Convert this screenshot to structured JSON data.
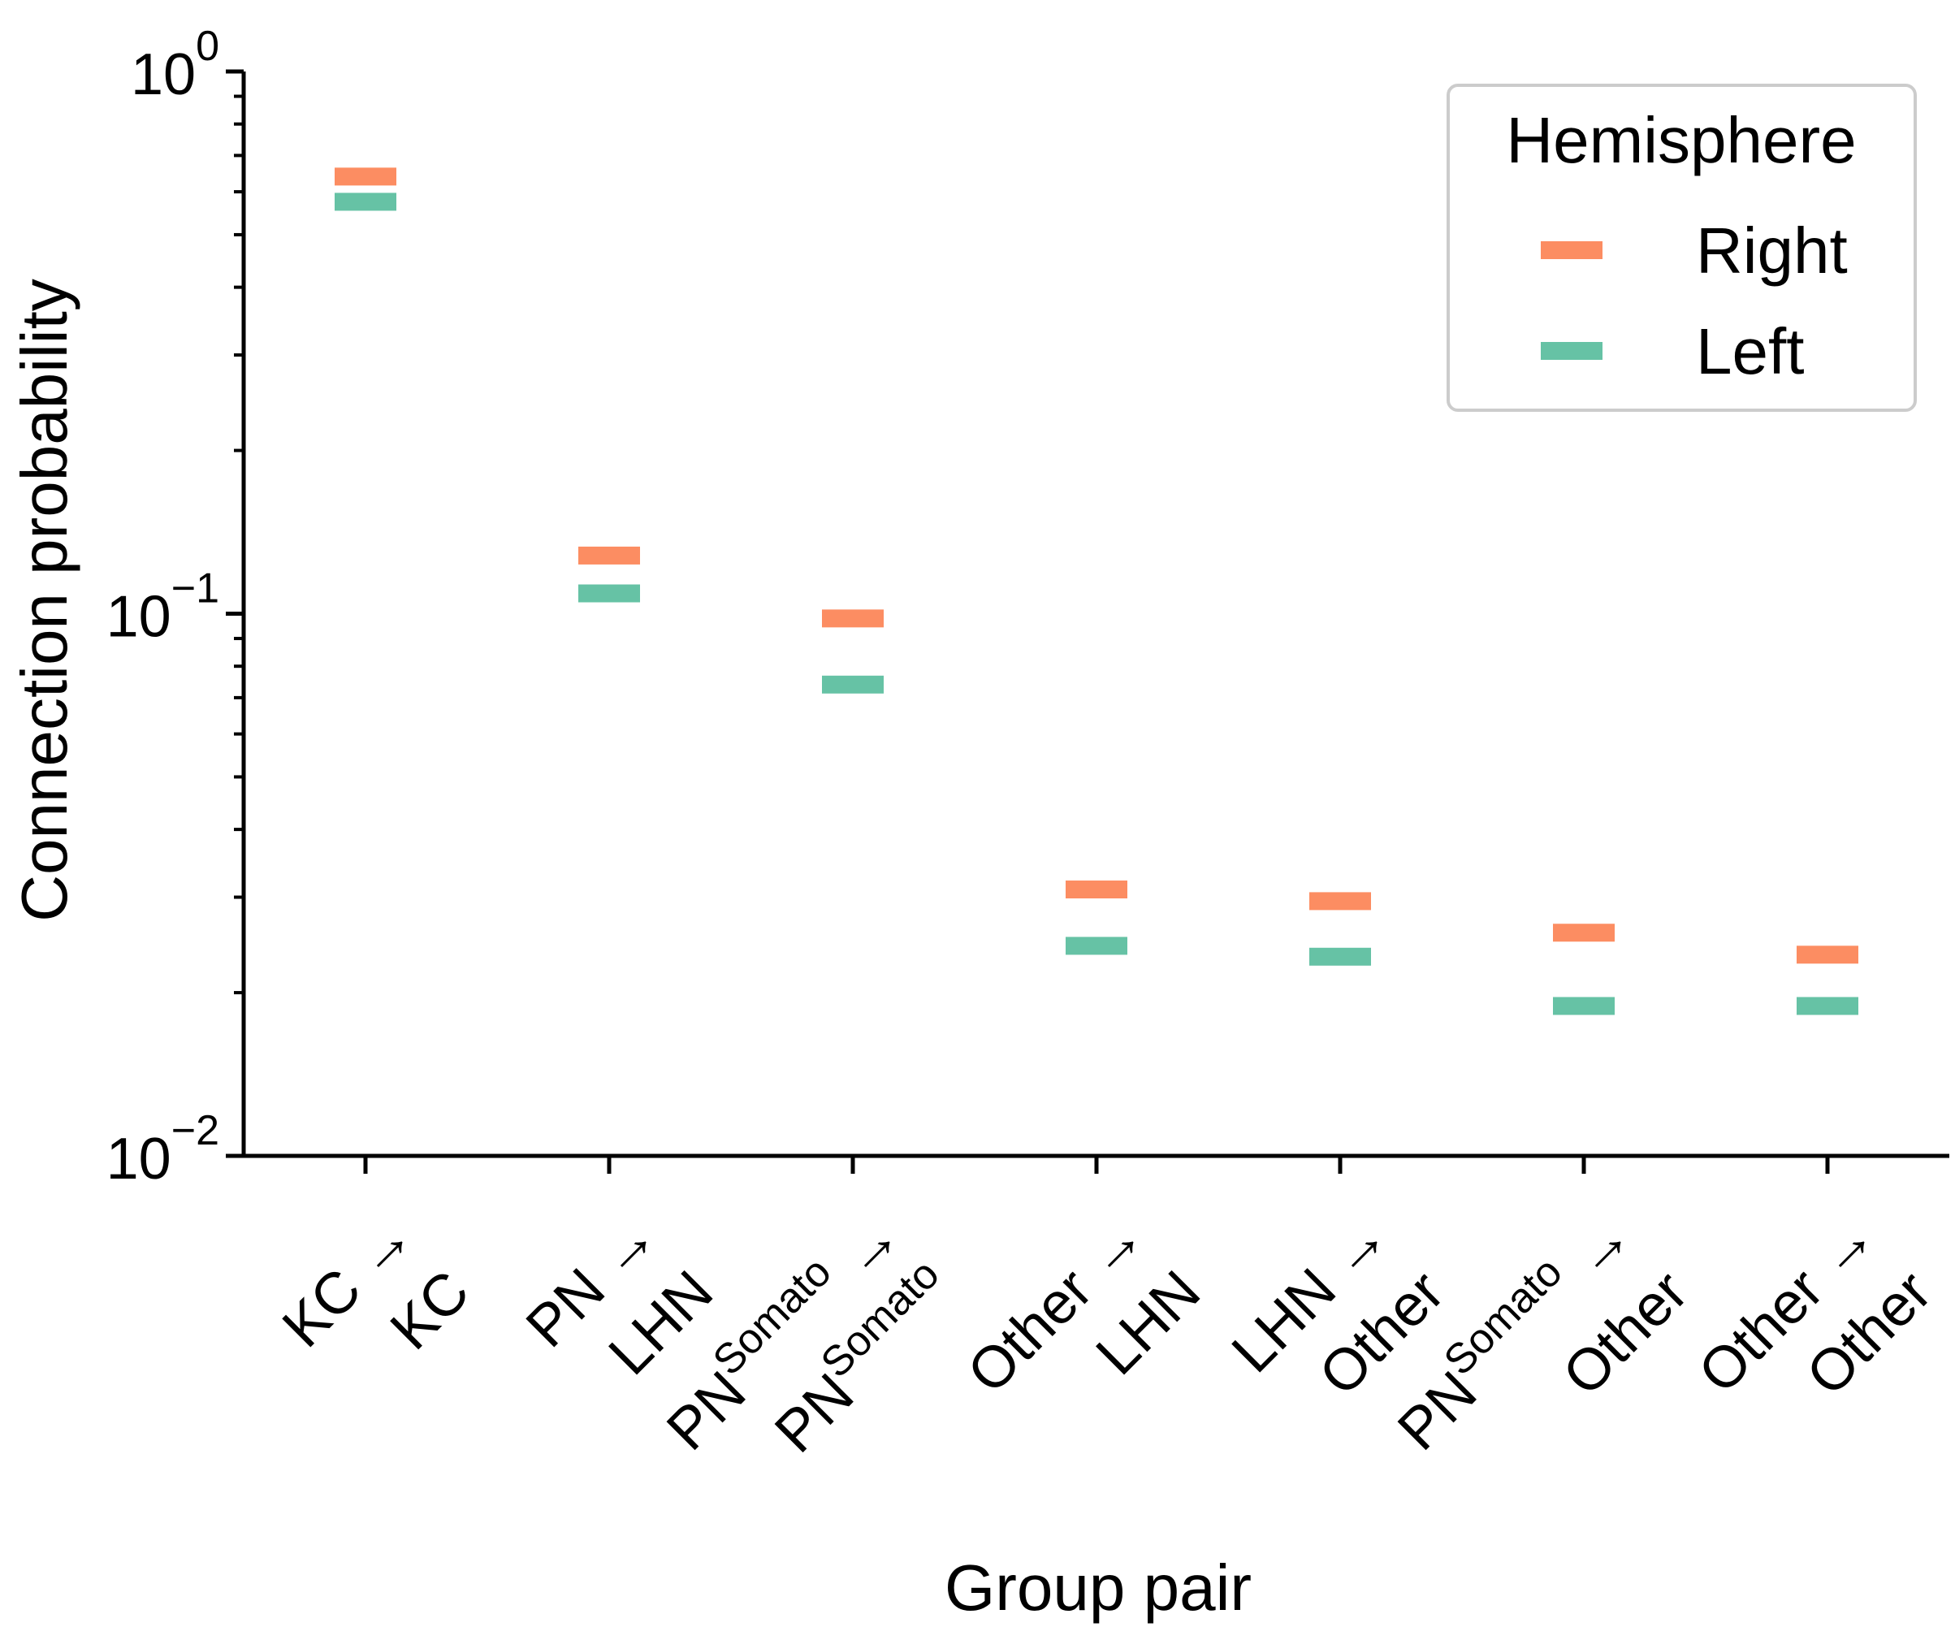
{
  "chart_data": {
    "type": "scatter",
    "marker": "horizontal-dash",
    "xlabel": "Group pair",
    "ylabel": "Connection probability",
    "yscale": "log",
    "ylim": [
      0.01,
      1
    ],
    "yticks": [
      {
        "value": 1,
        "base": "10",
        "exp": "0"
      },
      {
        "value": 0.1,
        "base": "10",
        "exp": "−1"
      },
      {
        "value": 0.01,
        "base": "10",
        "exp": "−2"
      }
    ],
    "grid": false,
    "categories": [
      {
        "line1": [
          {
            "t": "KC →"
          }
        ],
        "line2": [
          {
            "t": "KC"
          }
        ]
      },
      {
        "line1": [
          {
            "t": "PN →"
          }
        ],
        "line2": [
          {
            "t": "LHN"
          }
        ]
      },
      {
        "line1": [
          {
            "t": "PN"
          },
          {
            "t": "Somato",
            "sup": true
          },
          {
            "t": " →"
          }
        ],
        "line2": [
          {
            "t": "PN"
          },
          {
            "t": "Somato",
            "sup": true
          }
        ]
      },
      {
        "line1": [
          {
            "t": "Other →"
          }
        ],
        "line2": [
          {
            "t": "LHN"
          }
        ]
      },
      {
        "line1": [
          {
            "t": "LHN →"
          }
        ],
        "line2": [
          {
            "t": "Other"
          }
        ]
      },
      {
        "line1": [
          {
            "t": "PN"
          },
          {
            "t": "Somato",
            "sup": true
          },
          {
            "t": " →"
          }
        ],
        "line2": [
          {
            "t": "Other"
          }
        ]
      },
      {
        "line1": [
          {
            "t": "Other →"
          }
        ],
        "line2": [
          {
            "t": "Other"
          }
        ]
      }
    ],
    "series": [
      {
        "name": "Right",
        "color": "#fc8d62",
        "values": [
          0.64,
          0.128,
          0.098,
          0.031,
          0.0295,
          0.0258,
          0.0235
        ]
      },
      {
        "name": "Left",
        "color": "#66c2a5",
        "values": [
          0.575,
          0.109,
          0.074,
          0.0244,
          0.0233,
          0.0189,
          0.0189
        ]
      }
    ],
    "legend": {
      "title": "Hemisphere",
      "position": "top-right"
    }
  }
}
